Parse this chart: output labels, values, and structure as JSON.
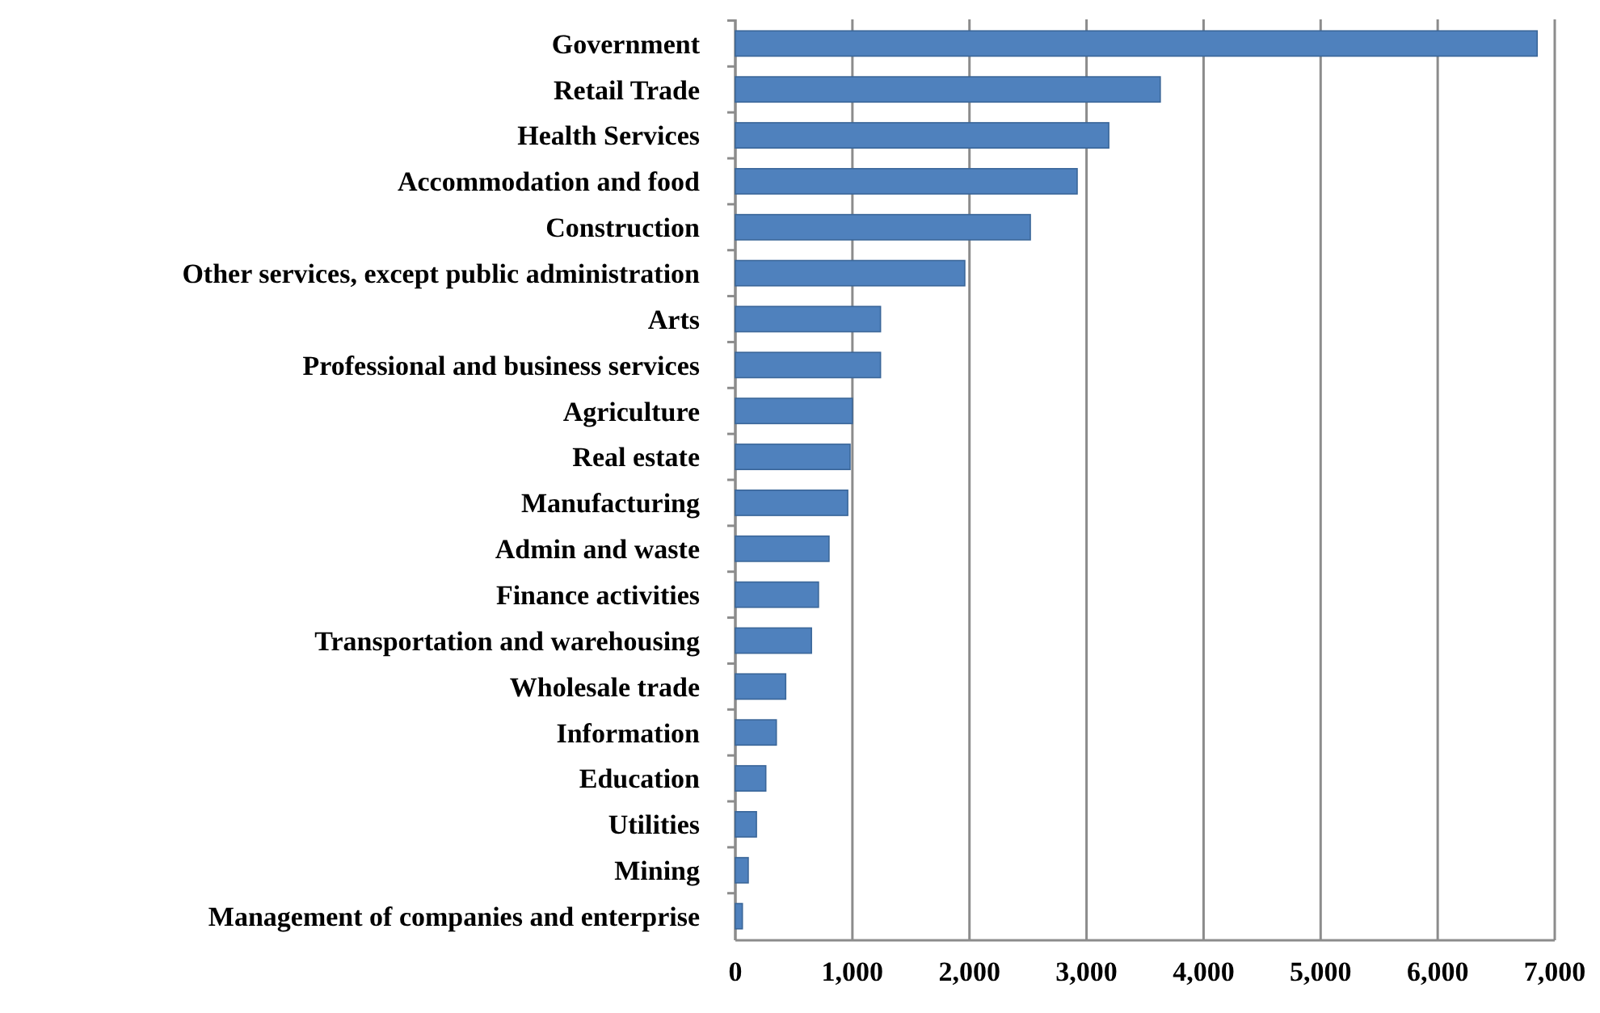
{
  "chart_data": {
    "type": "bar",
    "orientation": "horizontal",
    "categories": [
      "Government",
      "Retail Trade",
      "Health Services",
      "Accommodation and food",
      "Construction",
      "Other services, except public administration",
      "Arts",
      "Professional and business services",
      "Agriculture",
      "Real estate",
      "Manufacturing",
      "Admin and waste",
      "Finance activities",
      "Transportation and warehousing",
      "Wholesale trade",
      "Information",
      "Education",
      "Utilities",
      "Mining",
      "Management of companies and enterprise"
    ],
    "values": [
      6850,
      3630,
      3190,
      2920,
      2520,
      1960,
      1240,
      1240,
      1000,
      980,
      960,
      800,
      710,
      650,
      430,
      350,
      260,
      180,
      110,
      60
    ],
    "color": "#4f81bd",
    "xlim": [
      0,
      7000
    ],
    "xticks": [
      {
        "value": 0,
        "label": "0"
      },
      {
        "value": 1000,
        "label": "1,000"
      },
      {
        "value": 2000,
        "label": "2,000"
      },
      {
        "value": 3000,
        "label": "3,000"
      },
      {
        "value": 4000,
        "label": "4,000"
      },
      {
        "value": 5000,
        "label": "5,000"
      },
      {
        "value": 6000,
        "label": "6,000"
      },
      {
        "value": 7000,
        "label": "7,000"
      }
    ],
    "grid": "x"
  }
}
